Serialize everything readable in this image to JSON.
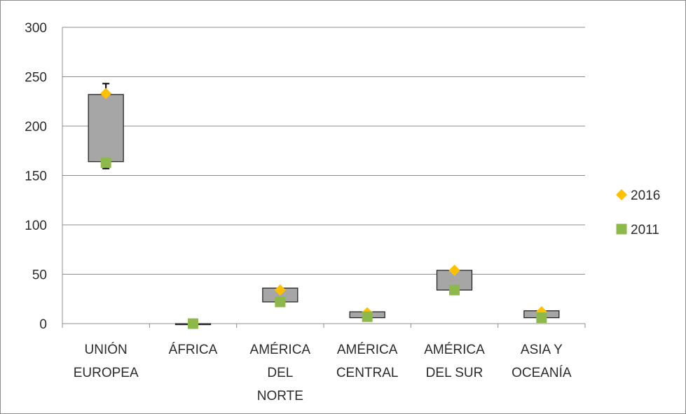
{
  "chart_data": {
    "type": "scatter",
    "subtype": "range-box-with-markers",
    "title": "",
    "xlabel": "",
    "ylabel": "",
    "ylim": [
      0,
      300
    ],
    "y_ticks": [
      0,
      50,
      100,
      150,
      200,
      250,
      300
    ],
    "grid": "horizontal",
    "legend_position": "right",
    "categories": [
      {
        "lines": [
          "UNIÓN",
          "EUROPEA"
        ]
      },
      {
        "lines": [
          "ÁFRICA"
        ]
      },
      {
        "lines": [
          "AMÉRICA",
          "DEL",
          "NORTE"
        ]
      },
      {
        "lines": [
          "AMÉRICA",
          "CENTRAL"
        ]
      },
      {
        "lines": [
          "AMÉRICA",
          "DEL SUR"
        ]
      },
      {
        "lines": [
          "ASIA Y",
          "OCEANÍA"
        ]
      }
    ],
    "series": [
      {
        "name": "2016",
        "marker": "diamond",
        "color": "#ffc000",
        "values": [
          233,
          0,
          34,
          11,
          54,
          12
        ]
      },
      {
        "name": "2011",
        "marker": "square",
        "color": "#8db84a",
        "values": [
          163,
          0,
          22,
          7,
          34,
          6
        ]
      }
    ],
    "boxes": [
      {
        "low": 164,
        "high": 232,
        "whisker_low": 157,
        "whisker_high": 243
      },
      {
        "low": 0,
        "high": 0,
        "whisker_low": 0,
        "whisker_high": 0
      },
      {
        "low": 22,
        "high": 36,
        "whisker_low": 22,
        "whisker_high": 36
      },
      {
        "low": 6,
        "high": 12,
        "whisker_low": 6,
        "whisker_high": 12
      },
      {
        "low": 34,
        "high": 54,
        "whisker_low": 34,
        "whisker_high": 55
      },
      {
        "low": 6,
        "high": 13,
        "whisker_low": 6,
        "whisker_high": 13
      }
    ],
    "box_color": "#a6a6a6"
  }
}
